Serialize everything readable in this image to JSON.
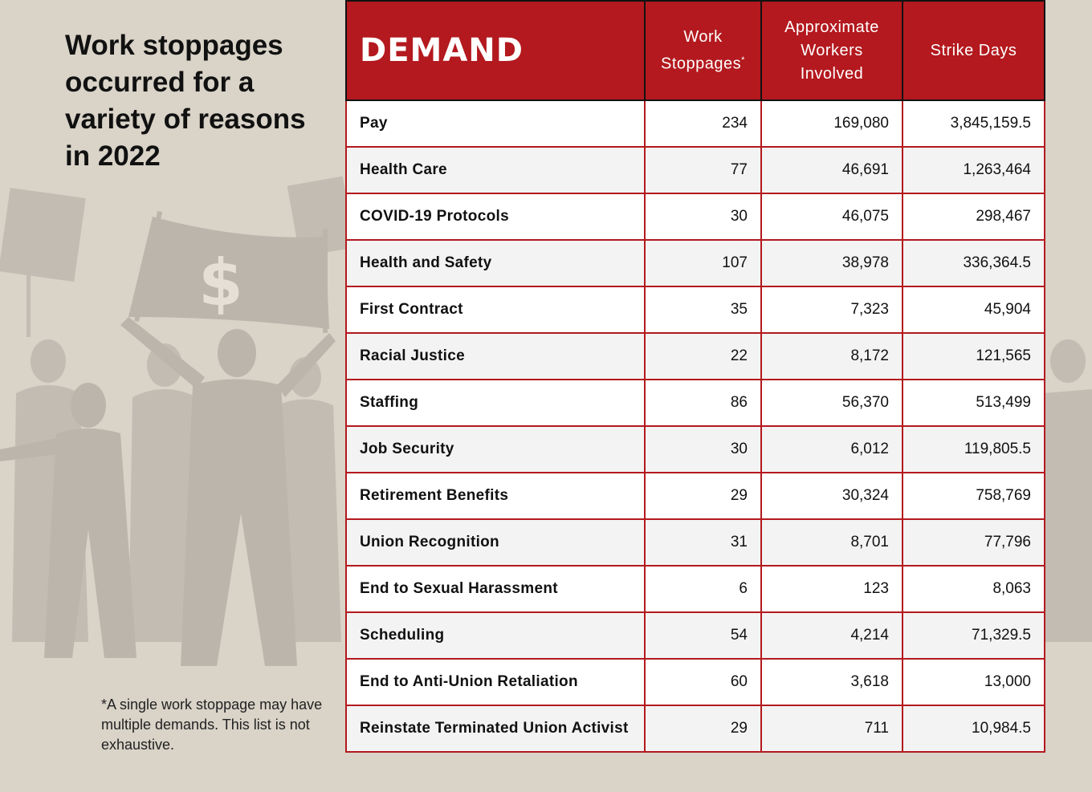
{
  "title": "Work stoppages occurred for a variety of reasons in 2022",
  "footnote": "*A single work stoppage may have multiple demands. This list is not exhaustive.",
  "banner_symbol": "$",
  "colors": {
    "header": "#b3191e",
    "background": "#d9d3c8",
    "silhouette": "#bcb5ab"
  },
  "chart_data": {
    "type": "table",
    "columns": [
      {
        "label": "DEMAND",
        "marker": ""
      },
      {
        "label": "Work Stoppages",
        "marker": "*"
      },
      {
        "label": "Approximate Workers Involved",
        "marker": ""
      },
      {
        "label": "Strike Days",
        "marker": ""
      }
    ],
    "rows": [
      [
        "Pay",
        "234",
        "169,080",
        "3,845,159.5"
      ],
      [
        "Health Care",
        "77",
        "46,691",
        "1,263,464"
      ],
      [
        "COVID-19 Protocols",
        "30",
        "46,075",
        "298,467"
      ],
      [
        "Health and Safety",
        "107",
        "38,978",
        "336,364.5"
      ],
      [
        "First Contract",
        "35",
        "7,323",
        "45,904"
      ],
      [
        "Racial Justice",
        "22",
        "8,172",
        "121,565"
      ],
      [
        "Staffing",
        "86",
        "56,370",
        "513,499"
      ],
      [
        "Job Security",
        "30",
        "6,012",
        "119,805.5"
      ],
      [
        "Retirement Benefits",
        "29",
        "30,324",
        "758,769"
      ],
      [
        "Union Recognition",
        "31",
        "8,701",
        "77,796"
      ],
      [
        "End to Sexual Harassment",
        "6",
        "123",
        "8,063"
      ],
      [
        "Scheduling",
        "54",
        "4,214",
        "71,329.5"
      ],
      [
        "End to Anti-Union Retaliation",
        "60",
        "3,618",
        "13,000"
      ],
      [
        "Reinstate Terminated Union Activist",
        "29",
        "711",
        "10,984.5"
      ]
    ]
  }
}
